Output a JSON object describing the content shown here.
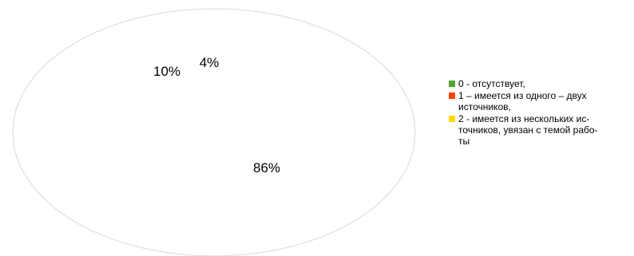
{
  "chart_data": {
    "type": "pie",
    "title": "",
    "categories": [
      "0 - отсутствует,",
      "1 – имеется из одного – двух источников,",
      "2 - имеется из нескольких ис-точников, увязан с темой рабо-ты"
    ],
    "values": [
      4,
      10,
      86
    ],
    "data_labels": [
      "4%",
      "10%",
      "86%"
    ],
    "colors": [
      "#4ea72e",
      "#ff4500",
      "#ffd700"
    ],
    "legend_position": "right"
  },
  "legend": {
    "items": [
      {
        "label_lines": [
          "0 - отсутствует,"
        ],
        "color": "#4ea72e"
      },
      {
        "label_lines": [
          "1 – имеется из одного – двух",
          "источников,"
        ],
        "color": "#ff4500"
      },
      {
        "label_lines": [
          "2 - имеется из нескольких ис-",
          "точников, увязан с темой рабо-",
          "ты"
        ],
        "color": "#ffd700"
      }
    ]
  }
}
